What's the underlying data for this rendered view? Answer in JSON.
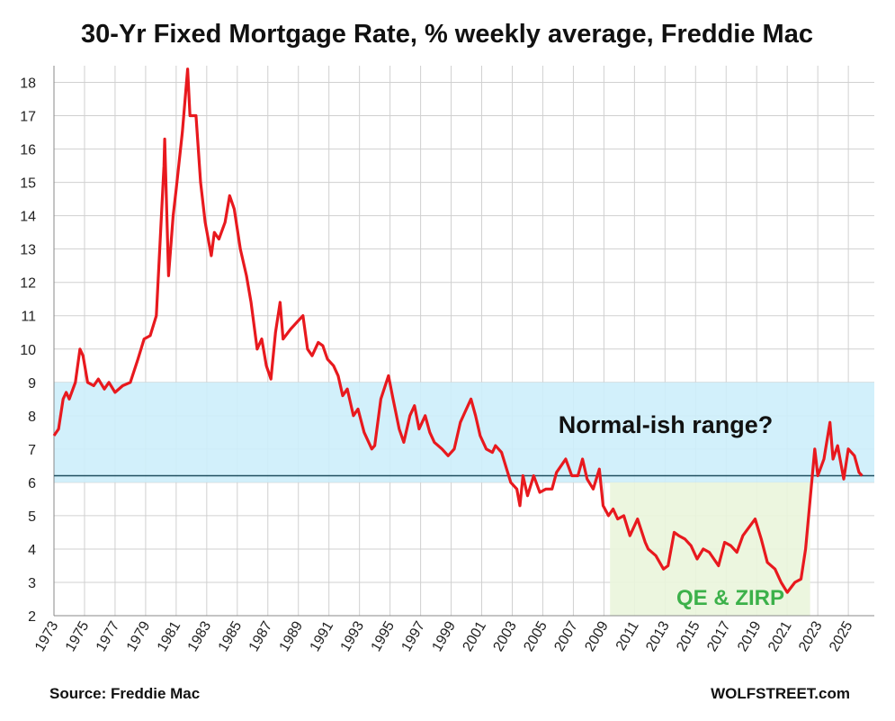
{
  "chart_data": {
    "type": "line",
    "title": "30-Yr Fixed Mortgage Rate, % weekly average, Freddie Mac",
    "x": [
      1973.0,
      1973.3,
      1973.6,
      1973.8,
      1974.0,
      1974.4,
      1974.7,
      1974.9,
      1975.2,
      1975.6,
      1975.9,
      1976.3,
      1976.6,
      1977.0,
      1977.5,
      1978.0,
      1978.5,
      1978.9,
      1979.3,
      1979.7,
      1979.9,
      1980.2,
      1980.25,
      1980.5,
      1980.8,
      1981.0,
      1981.4,
      1981.75,
      1981.9,
      1982.3,
      1982.6,
      1982.9,
      1983.3,
      1983.5,
      1983.8,
      1984.2,
      1984.5,
      1984.8,
      1985.2,
      1985.6,
      1985.9,
      1986.3,
      1986.6,
      1986.9,
      1987.2,
      1987.5,
      1987.8,
      1988.0,
      1988.5,
      1988.9,
      1989.3,
      1989.6,
      1989.9,
      1990.3,
      1990.6,
      1990.9,
      1991.3,
      1991.6,
      1991.9,
      1992.2,
      1992.6,
      1992.9,
      1993.3,
      1993.8,
      1994.0,
      1994.4,
      1994.9,
      1995.2,
      1995.6,
      1995.9,
      1996.3,
      1996.6,
      1996.9,
      1997.3,
      1997.6,
      1997.9,
      1998.4,
      1998.8,
      1999.2,
      1999.6,
      1999.9,
      2000.3,
      2000.6,
      2000.9,
      2001.3,
      2001.7,
      2001.9,
      2002.3,
      2002.7,
      2002.9,
      2003.3,
      2003.5,
      2003.7,
      2004.0,
      2004.4,
      2004.8,
      2005.2,
      2005.6,
      2005.9,
      2006.5,
      2006.9,
      2007.3,
      2007.6,
      2007.9,
      2008.3,
      2008.7,
      2008.95,
      2009.3,
      2009.6,
      2009.9,
      2010.3,
      2010.7,
      2010.9,
      2011.2,
      2011.7,
      2011.9,
      2012.4,
      2012.9,
      2013.2,
      2013.6,
      2013.9,
      2014.3,
      2014.7,
      2015.1,
      2015.5,
      2015.9,
      2016.5,
      2016.9,
      2017.3,
      2017.7,
      2018.1,
      2018.9,
      2019.3,
      2019.7,
      2020.2,
      2020.6,
      2021.0,
      2021.5,
      2021.9,
      2022.2,
      2022.5,
      2022.8,
      2023.0,
      2023.4,
      2023.8,
      2024.0,
      2024.3,
      2024.7,
      2025.0,
      2025.4,
      2025.7,
      2025.9
    ],
    "series": [
      {
        "name": "30-Yr Fixed Mortgage Rate",
        "color": "#e8191e",
        "values": [
          7.4,
          7.6,
          8.5,
          8.7,
          8.5,
          9.0,
          10.0,
          9.8,
          9.0,
          8.9,
          9.1,
          8.8,
          9.0,
          8.7,
          8.9,
          9.0,
          9.7,
          10.3,
          10.4,
          11.0,
          12.8,
          15.5,
          16.3,
          12.2,
          14.0,
          14.8,
          16.5,
          18.4,
          17.0,
          17.0,
          15.0,
          13.8,
          12.8,
          13.5,
          13.3,
          13.8,
          14.6,
          14.2,
          13.0,
          12.2,
          11.4,
          10.0,
          10.3,
          9.5,
          9.1,
          10.5,
          11.4,
          10.3,
          10.6,
          10.8,
          11.0,
          10.0,
          9.8,
          10.2,
          10.1,
          9.7,
          9.5,
          9.2,
          8.6,
          8.8,
          8.0,
          8.2,
          7.5,
          7.0,
          7.1,
          8.5,
          9.2,
          8.5,
          7.6,
          7.2,
          8.0,
          8.3,
          7.6,
          8.0,
          7.5,
          7.2,
          7.0,
          6.8,
          7.0,
          7.8,
          8.1,
          8.5,
          8.0,
          7.4,
          7.0,
          6.9,
          7.1,
          6.9,
          6.3,
          6.0,
          5.8,
          5.3,
          6.2,
          5.6,
          6.2,
          5.7,
          5.8,
          5.8,
          6.3,
          6.7,
          6.2,
          6.2,
          6.7,
          6.1,
          5.8,
          6.4,
          5.3,
          5.0,
          5.2,
          4.9,
          5.0,
          4.4,
          4.6,
          4.9,
          4.2,
          4.0,
          3.8,
          3.4,
          3.5,
          4.5,
          4.4,
          4.3,
          4.1,
          3.7,
          4.0,
          3.9,
          3.5,
          4.2,
          4.1,
          3.9,
          4.4,
          4.9,
          4.3,
          3.6,
          3.4,
          3.0,
          2.7,
          3.0,
          3.1,
          4.0,
          5.5,
          7.0,
          6.2,
          6.7,
          7.8,
          6.7,
          7.1,
          6.1,
          7.0,
          6.8,
          6.3,
          6.2
        ]
      }
    ],
    "xlim": [
      1973,
      2026.7
    ],
    "xticks": [
      1973,
      1975,
      1977,
      1979,
      1981,
      1983,
      1985,
      1987,
      1989,
      1991,
      1993,
      1995,
      1997,
      1999,
      2001,
      2003,
      2005,
      2007,
      2009,
      2011,
      2013,
      2015,
      2017,
      2019,
      2021,
      2023,
      2025
    ],
    "ylim": [
      2,
      18.5
    ],
    "yticks": [
      2,
      3,
      4,
      5,
      6,
      7,
      8,
      9,
      10,
      11,
      12,
      13,
      14,
      15,
      16,
      17,
      18
    ],
    "grid": true,
    "reference_line": {
      "y": 6.2,
      "color": "#1f4e5f"
    },
    "shaded_ranges": [
      {
        "label": "Normal-ish range?",
        "y": [
          6,
          9
        ],
        "color": "#cdeefb",
        "label_color": "#111111"
      },
      {
        "label": "QE & ZIRP",
        "x": [
          2009.4,
          2022.5
        ],
        "y": [
          2,
          6
        ],
        "color": "#eaf5dc",
        "label_color": "#3cb14a"
      }
    ],
    "source": "Source: Freddie Mac",
    "credit": "WOLFSTREET.com"
  }
}
